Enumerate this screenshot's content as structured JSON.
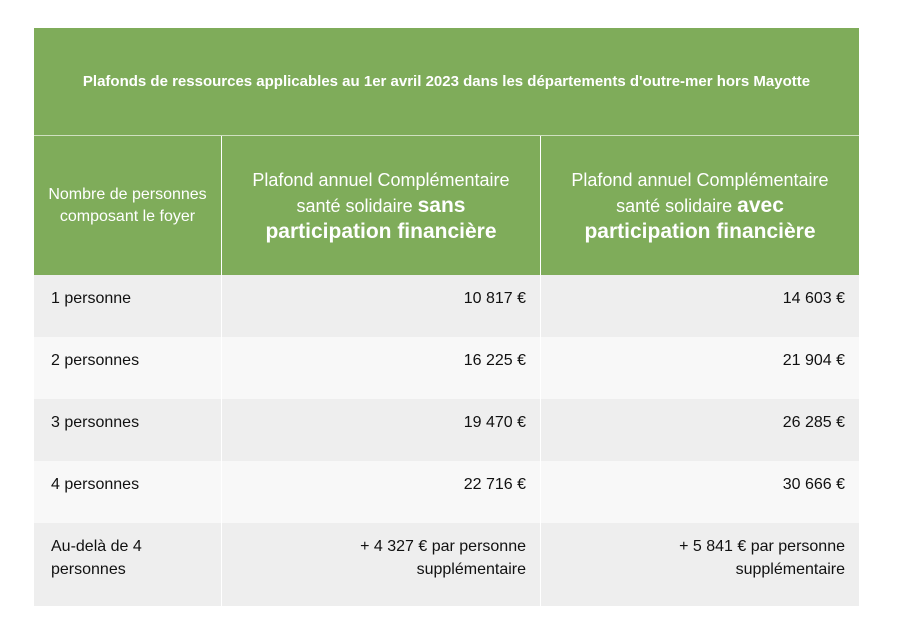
{
  "title": "Plafonds de ressources applicables au 1er avril 2023 dans les départements d'outre-mer hors Mayotte",
  "headers": {
    "col1": "Nombre de personnes composant le foyer",
    "col2_prefix": "Plafond annuel Complémentaire santé solidaire ",
    "col2_bold": "sans participation financière",
    "col3_prefix": "Plafond annuel Complémentaire santé solidaire ",
    "col3_bold": "avec participation financière"
  },
  "rows": [
    {
      "label": "1 personne",
      "sans": "10 817 €",
      "avec": "14 603 €"
    },
    {
      "label": "2 personnes",
      "sans": "16 225 €",
      "avec": "21 904 €"
    },
    {
      "label": "3 personnes",
      "sans": "19 470 €",
      "avec": "26 285 €"
    },
    {
      "label": "4 personnes",
      "sans": "22 716 €",
      "avec": "30 666 €"
    },
    {
      "label": "Au-delà de 4 personnes",
      "sans": "+ 4 327 € par personne supplémentaire",
      "avec": "+ 5 841 € par personne supplémentaire"
    }
  ],
  "colors": {
    "header_green": "#7fac5a",
    "row_gray": "#eeeeee",
    "row_light": "#f8f8f8"
  }
}
